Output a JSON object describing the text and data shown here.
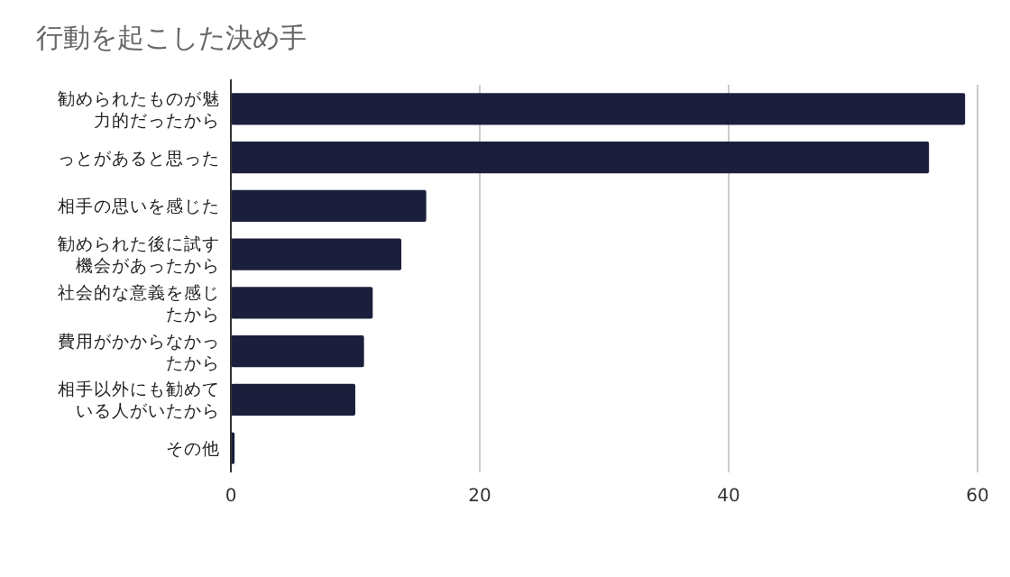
{
  "chart_data": {
    "type": "bar",
    "orientation": "horizontal",
    "title": "行動を起こした決め手",
    "categories": [
      "勧められたものが魅力的だったから",
      "っとがあると思った",
      "相手の思いを感じた",
      "勧められた後に試す機会があったから",
      "社会的な意義を感じたから",
      "費用がかからなかったから",
      "相手以外にも勧めている人がいたから",
      "その他"
    ],
    "values": [
      59,
      56.1,
      15.7,
      13.7,
      11.4,
      10.7,
      10,
      0.3
    ],
    "color": "#1b1f3b",
    "xlim": [
      0,
      60
    ],
    "xticks": [
      0,
      20,
      40,
      60
    ],
    "grid": "x"
  }
}
